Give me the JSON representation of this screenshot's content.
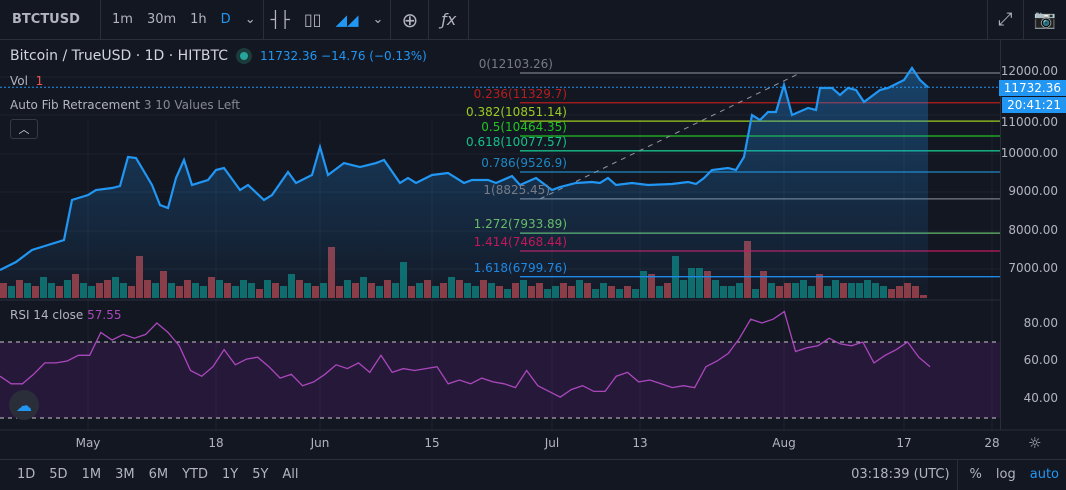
{
  "toolbar": {
    "symbol": "BTCTUSD",
    "intervals": [
      "1m",
      "30m",
      "1h",
      "D"
    ],
    "active_interval": "D"
  },
  "legend": {
    "title": "Bitcoin / TrueUSD · 1D · HITBTC",
    "quote": "11732.36 −14.76 (−0.13%)",
    "vol_label": "Vol",
    "vol_value": "1",
    "fib_name": "Auto Fib Retracement",
    "fib_params": "3 10 Values Left"
  },
  "fib": [
    {
      "label": "0(12103.26)",
      "price": 12103.26,
      "color": "#787b86"
    },
    {
      "label": "0.236(11329.7)",
      "price": 11329.7,
      "color": "#b71c1c"
    },
    {
      "label": "0.382(10851.14)",
      "price": 10851.14,
      "color": "#9ccc20"
    },
    {
      "label": "0.5(10464.35)",
      "price": 10464.35,
      "color": "#22c322"
    },
    {
      "label": "0.618(10077.57)",
      "price": 10077.57,
      "color": "#15c08a"
    },
    {
      "label": "0.786(9526.9)",
      "price": 9526.9,
      "color": "#1e88c5"
    },
    {
      "label": "1(8825.45)",
      "price": 8825.45,
      "color": "#787b86"
    },
    {
      "label": "1.272(7933.89)",
      "price": 7933.89,
      "color": "#66bb6a"
    },
    {
      "label": "1.414(7468.44)",
      "price": 7468.44,
      "color": "#c2185b"
    },
    {
      "label": "1.618(6799.76)",
      "price": 6799.76,
      "color": "#1e88e5"
    }
  ],
  "price_axis": [
    "12000.00",
    "11000.00",
    "10000.00",
    "9000.00",
    "8000.00",
    "7000.00"
  ],
  "last_price": "11732.36",
  "countdown": "20:41:21",
  "rsi": {
    "label": "RSI 14 close",
    "value": "57.55",
    "axis": [
      "80.00",
      "60.00",
      "40.00"
    ],
    "values": [
      52,
      48,
      48,
      53,
      59,
      59,
      60,
      63,
      63,
      75,
      71,
      74,
      72,
      74,
      80,
      75,
      68,
      55,
      52,
      57,
      66,
      58,
      61,
      62,
      57,
      51,
      53,
      47,
      49,
      53,
      58,
      56,
      59,
      54,
      63,
      54,
      56,
      55,
      56,
      57,
      48,
      50,
      48,
      51,
      49,
      48,
      46,
      55,
      47,
      44,
      41,
      45,
      47,
      44,
      44,
      52,
      54,
      49,
      50,
      48,
      46,
      47,
      46,
      57,
      60,
      64,
      72,
      82,
      80,
      82,
      86,
      65,
      67,
      68,
      72,
      69,
      68,
      70,
      59,
      63,
      66,
      70,
      62,
      57
    ]
  },
  "time_axis": [
    {
      "label": "May",
      "day": 11
    },
    {
      "label": "18",
      "day": 27
    },
    {
      "label": "Jun",
      "day": 40
    },
    {
      "label": "15",
      "day": 54
    },
    {
      "label": "Jul",
      "day": 69
    },
    {
      "label": "13",
      "day": 80
    },
    {
      "label": "Aug",
      "day": 98
    },
    {
      "label": "17",
      "day": 113
    },
    {
      "label": "28",
      "day": 124
    }
  ],
  "ranges": [
    "1D",
    "5D",
    "1M",
    "3M",
    "6M",
    "YTD",
    "1Y",
    "5Y",
    "All"
  ],
  "clock": "03:18:39 (UTC)",
  "scale_opts": [
    "%",
    "log",
    "auto"
  ],
  "chart_data": {
    "type": "area",
    "prices": [
      [
        0,
        6974
      ],
      [
        2,
        7182
      ],
      [
        4,
        7495
      ],
      [
        6,
        7625
      ],
      [
        8,
        7755
      ],
      [
        9,
        8797
      ],
      [
        11,
        8927
      ],
      [
        12,
        9057
      ],
      [
        14,
        9109
      ],
      [
        15,
        9161
      ],
      [
        16,
        9917
      ],
      [
        17,
        9891
      ],
      [
        19,
        9188
      ],
      [
        20,
        8667
      ],
      [
        21,
        8589
      ],
      [
        22,
        9370
      ],
      [
        23,
        9839
      ],
      [
        24,
        9188
      ],
      [
        26,
        9318
      ],
      [
        27,
        9578
      ],
      [
        28,
        9630
      ],
      [
        30,
        9057
      ],
      [
        31,
        9188
      ],
      [
        33,
        8797
      ],
      [
        34,
        8927
      ],
      [
        36,
        9526
      ],
      [
        37,
        9240
      ],
      [
        39,
        9448
      ],
      [
        40,
        10177
      ],
      [
        41,
        9448
      ],
      [
        43,
        9760
      ],
      [
        45,
        9656
      ],
      [
        47,
        9760
      ],
      [
        48,
        9839
      ],
      [
        50,
        9240
      ],
      [
        51,
        9370
      ],
      [
        52,
        9240
      ],
      [
        54,
        9448
      ],
      [
        56,
        9500
      ],
      [
        57,
        9370
      ],
      [
        58,
        9240
      ],
      [
        59,
        9318
      ],
      [
        61,
        9318
      ],
      [
        62,
        9240
      ],
      [
        64,
        9420
      ],
      [
        65,
        9188
      ],
      [
        67,
        9370
      ],
      [
        69,
        9057
      ],
      [
        70,
        9135
      ],
      [
        72,
        9240
      ],
      [
        74,
        9266
      ],
      [
        75,
        9240
      ],
      [
        76,
        9370
      ],
      [
        77,
        9188
      ],
      [
        79,
        9240
      ],
      [
        81,
        9188
      ],
      [
        84,
        9214
      ],
      [
        86,
        9266
      ],
      [
        87,
        9214
      ],
      [
        88,
        9370
      ],
      [
        89,
        9578
      ],
      [
        91,
        9630
      ],
      [
        92,
        9578
      ],
      [
        93,
        9917
      ],
      [
        94,
        11010
      ],
      [
        95,
        10880
      ],
      [
        96,
        11089
      ],
      [
        97,
        11089
      ],
      [
        98,
        11792
      ],
      [
        99,
        11010
      ],
      [
        101,
        11193
      ],
      [
        102,
        11141
      ],
      [
        102.5,
        11714
      ],
      [
        104,
        11714
      ],
      [
        105,
        11531
      ],
      [
        106,
        11714
      ],
      [
        107,
        11661
      ],
      [
        108,
        11349
      ],
      [
        110,
        11661
      ],
      [
        111,
        11714
      ],
      [
        113,
        11922
      ],
      [
        114,
        12234
      ],
      [
        115,
        11922
      ],
      [
        116,
        11732
      ]
    ],
    "volume": [
      5,
      4,
      6,
      5,
      4,
      7,
      5,
      4,
      6,
      8,
      5,
      4,
      5,
      6,
      7,
      5,
      4,
      14,
      6,
      5,
      9,
      5,
      4,
      6,
      5,
      4,
      7,
      6,
      5,
      4,
      6,
      5,
      3,
      6,
      5,
      4,
      8,
      6,
      5,
      4,
      5,
      17,
      4,
      6,
      5,
      7,
      5,
      4,
      6,
      5,
      12,
      4,
      5,
      6,
      4,
      5,
      7,
      6,
      5,
      4,
      6,
      5,
      4,
      3,
      5,
      6,
      4,
      5,
      3,
      4,
      5,
      4,
      6,
      5,
      3,
      5,
      4,
      3,
      4,
      3,
      9,
      8,
      4,
      5,
      14,
      6,
      10,
      10,
      9,
      6,
      4,
      4,
      5,
      19,
      3,
      9,
      5,
      4,
      5,
      5,
      6,
      4,
      8,
      4,
      6,
      5,
      5,
      5,
      6,
      5,
      4,
      3,
      4,
      5,
      4,
      1
    ],
    "volume_up": [
      0,
      1,
      0,
      1,
      0,
      1,
      1,
      0,
      1,
      0,
      1,
      1,
      0,
      0,
      1,
      1,
      0,
      0,
      0,
      1,
      0,
      1,
      0,
      0,
      1,
      1,
      0,
      1,
      0,
      1,
      1,
      1,
      0,
      1,
      0,
      1,
      1,
      0,
      1,
      0,
      1,
      0,
      0,
      1,
      0,
      1,
      0,
      1,
      0,
      1,
      1,
      0,
      1,
      0,
      1,
      0,
      1,
      0,
      1,
      1,
      0,
      1,
      0,
      1,
      0,
      1,
      0,
      0,
      1,
      1,
      0,
      0,
      1,
      0,
      1,
      1,
      0,
      1,
      0,
      1,
      1,
      0,
      1,
      0,
      1,
      1,
      1,
      1,
      0,
      1,
      1,
      1,
      1,
      0,
      1,
      0,
      1,
      0,
      0,
      1,
      1,
      1,
      0,
      1,
      1,
      0,
      1,
      1,
      1,
      1,
      1,
      0,
      0,
      0,
      0,
      0
    ]
  }
}
